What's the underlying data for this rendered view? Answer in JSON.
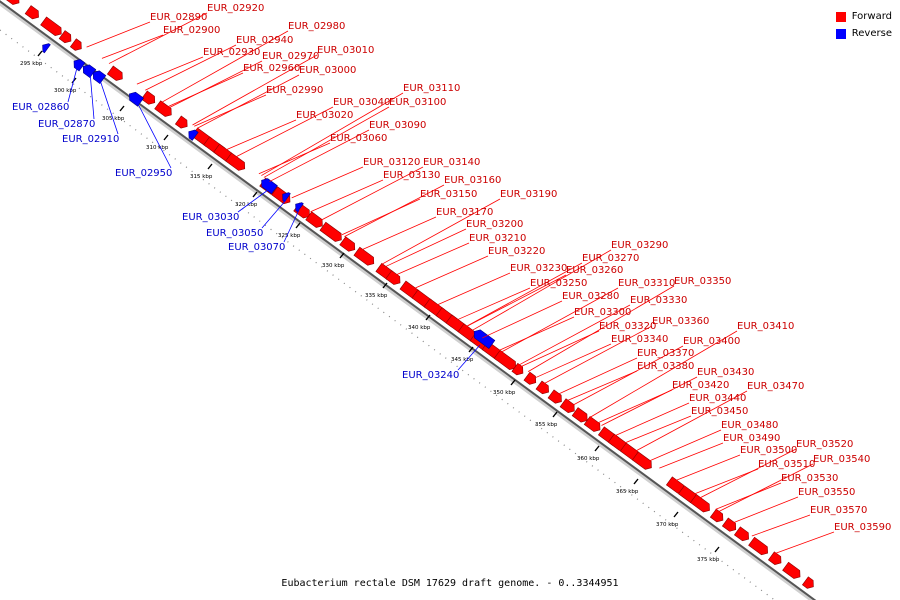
{
  "footer": "Eubacterium rectale DSM 17629 draft genome. - 0..3344951",
  "legend": [
    {
      "label": "Forward",
      "color": "#ff0000"
    },
    {
      "label": "Reverse",
      "color": "#0000ff"
    }
  ],
  "colors": {
    "forward": "#ff0000",
    "reverse": "#0000ff",
    "backbone": "#555555"
  },
  "ticks": [
    "295 kbp",
    "300 kbp",
    "305 kbp",
    "310 kbp",
    "315 kbp",
    "320 kbp",
    "325 kbp",
    "330 kbp",
    "335 kbp",
    "340 kbp",
    "345 kbp",
    "350 kbp",
    "355 kbp",
    "360 kbp",
    "365 kbp",
    "370 kbp",
    "375 kbp"
  ],
  "forward_labels": [
    "EUR_02890",
    "EUR_02920",
    "EUR_02900",
    "EUR_02980",
    "EUR_02940",
    "EUR_02930",
    "EUR_02970",
    "EUR_03010",
    "EUR_02960",
    "EUR_03000",
    "EUR_02990",
    "EUR_03110",
    "EUR_03040",
    "EUR_03100",
    "EUR_03020",
    "EUR_03090",
    "EUR_03060",
    "EUR_03120",
    "EUR_03140",
    "EUR_03130",
    "EUR_03160",
    "EUR_03150",
    "EUR_03190",
    "EUR_03170",
    "EUR_03200",
    "EUR_03210",
    "EUR_03220",
    "EUR_03290",
    "EUR_03270",
    "EUR_03230",
    "EUR_03260",
    "EUR_03250",
    "EUR_03350",
    "EUR_03310",
    "EUR_03280",
    "EUR_03330",
    "EUR_03300",
    "EUR_03360",
    "EUR_03410",
    "EUR_03320",
    "EUR_03340",
    "EUR_03400",
    "EUR_03370",
    "EUR_03380",
    "EUR_03430",
    "EUR_03420",
    "EUR_03470",
    "EUR_03440",
    "EUR_03450",
    "EUR_03480",
    "EUR_03490",
    "EUR_03520",
    "EUR_03500",
    "EUR_03540",
    "EUR_03510",
    "EUR_03530",
    "EUR_03550",
    "EUR_03570",
    "EUR_03590"
  ],
  "reverse_labels": [
    "EUR_02860",
    "EUR_02870",
    "EUR_02910",
    "EUR_02950",
    "EUR_03030",
    "EUR_03050",
    "EUR_03070",
    "EUR_03240"
  ]
}
